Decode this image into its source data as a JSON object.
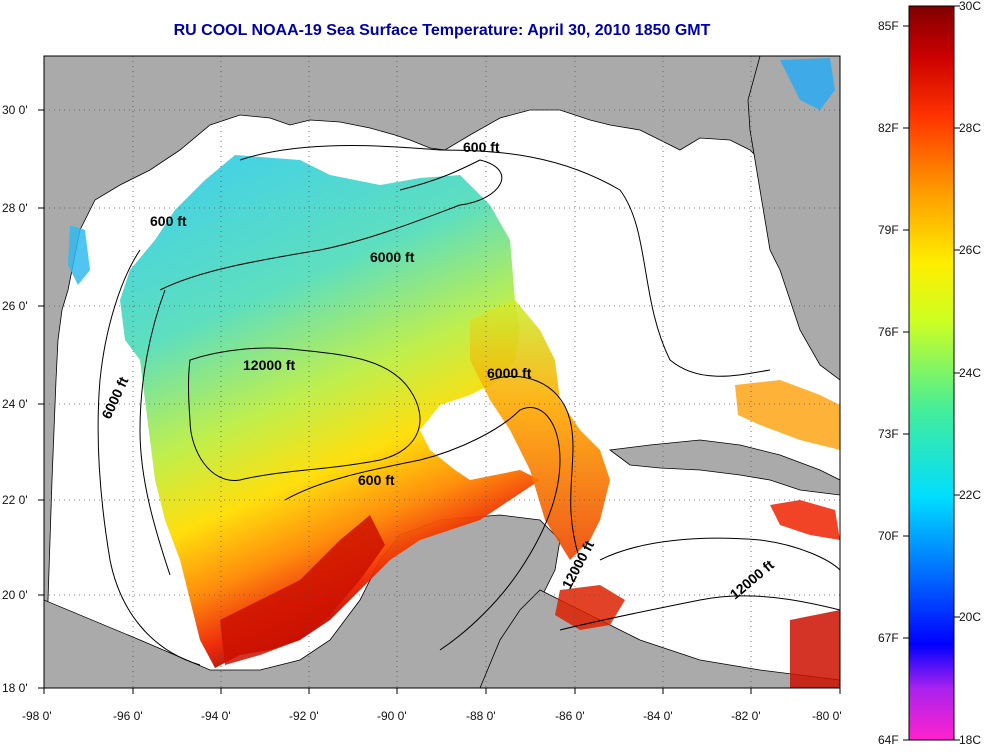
{
  "title": "RU COOL  NOAA-19  Sea Surface Temperature:  April 30, 2010 1850 GMT",
  "map": {
    "lon_range": [
      -98,
      -80
    ],
    "lat_range": [
      18,
      31
    ],
    "lon_ticks": [
      "-98 0'",
      "-96 0'",
      "-94 0'",
      "-92 0'",
      "-90 0'",
      "-88 0'",
      "-86 0'",
      "-84 0'",
      "-82 0'",
      "-80 0'"
    ],
    "lat_ticks": [
      "18 0'",
      "20 0'",
      "22 0'",
      "24 0'",
      "26 0'",
      "28 0'",
      "30 0'"
    ],
    "contour_labels": [
      "600 ft",
      "600 ft",
      "6000 ft",
      "6000 ft",
      "6000 ft",
      "12000 ft",
      "600 ft",
      "12000 ft",
      "12000 ft"
    ],
    "colors": {
      "land": "#aaaaaa",
      "cloud": "#ffffff",
      "contour": "#000000",
      "grid": "#444444"
    }
  },
  "colorbar": {
    "fahrenheit_labels": [
      "85F",
      "82F",
      "79F",
      "76F",
      "73F",
      "70F",
      "67F",
      "64F"
    ],
    "celsius_labels": [
      "30C",
      "28C",
      "26C",
      "24C",
      "22C",
      "20C",
      "18C"
    ],
    "range_c": [
      18,
      30
    ],
    "gradient": [
      "#ff22cc",
      "#9922ee",
      "#0000ff",
      "#0088ff",
      "#00eeff",
      "#44ee88",
      "#ccff00",
      "#ffee00",
      "#ff9900",
      "#ff3300",
      "#cc0000",
      "#800000"
    ]
  }
}
